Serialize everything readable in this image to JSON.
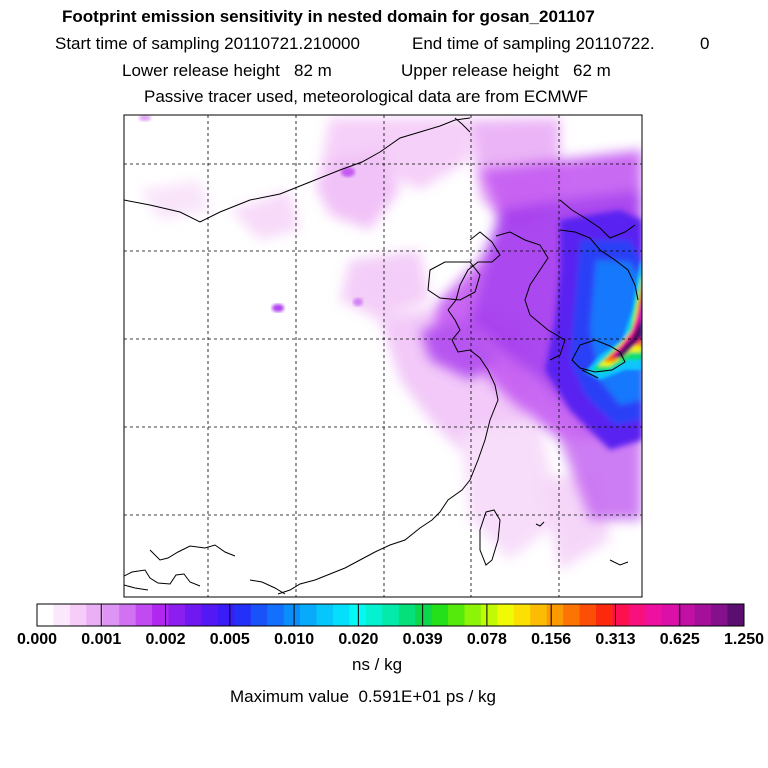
{
  "header": {
    "title": "Footprint emission sensitivity in nested domain for gosan_201107",
    "start_time": "Start time of sampling 20110721.210000",
    "end_time": "End time of sampling 20110722.",
    "end_time_suffix": "0",
    "lower_release": "Lower release height   82 m",
    "upper_release": "Upper release height   62 m",
    "tracer_note": "Passive tracer used, meteorological data are from ECMWF"
  },
  "legend": {
    "tick_labels": [
      "0.000",
      "0.001",
      "0.002",
      "0.005",
      "0.010",
      "0.020",
      "0.039",
      "0.078",
      "0.156",
      "0.313",
      "0.625",
      "1.250"
    ],
    "colors": [
      "#ffffff",
      "#fce8fc",
      "#f6cdf8",
      "#eab0f6",
      "#de94f4",
      "#d072f2",
      "#c24af2",
      "#b028f0",
      "#8c1ef0",
      "#7018f2",
      "#5418f4",
      "#3a1cf6",
      "#2430f8",
      "#1a52fa",
      "#1270fc",
      "#0a8efc",
      "#08aafc",
      "#06c6fc",
      "#04e0fc",
      "#04f8f4",
      "#04f2d0",
      "#04eaaa",
      "#06e07a",
      "#0cd64a",
      "#24e01a",
      "#56ea0c",
      "#8cf406",
      "#c0fa04",
      "#f0fa04",
      "#fce004",
      "#fcbc04",
      "#fc9a04",
      "#fc7404",
      "#fc4e06",
      "#fc2a0c",
      "#fc1050",
      "#f8107e",
      "#ee109e",
      "#dc10a8",
      "#c210a4",
      "#a4109a",
      "#84108c",
      "#5a0e6e"
    ],
    "units": "ns / kg",
    "maximum": "Maximum value  0.591E+01 ps / kg"
  },
  "map": {
    "frame_color": "#000000",
    "grid_style": "dashed",
    "coastline_color": "#000000"
  }
}
